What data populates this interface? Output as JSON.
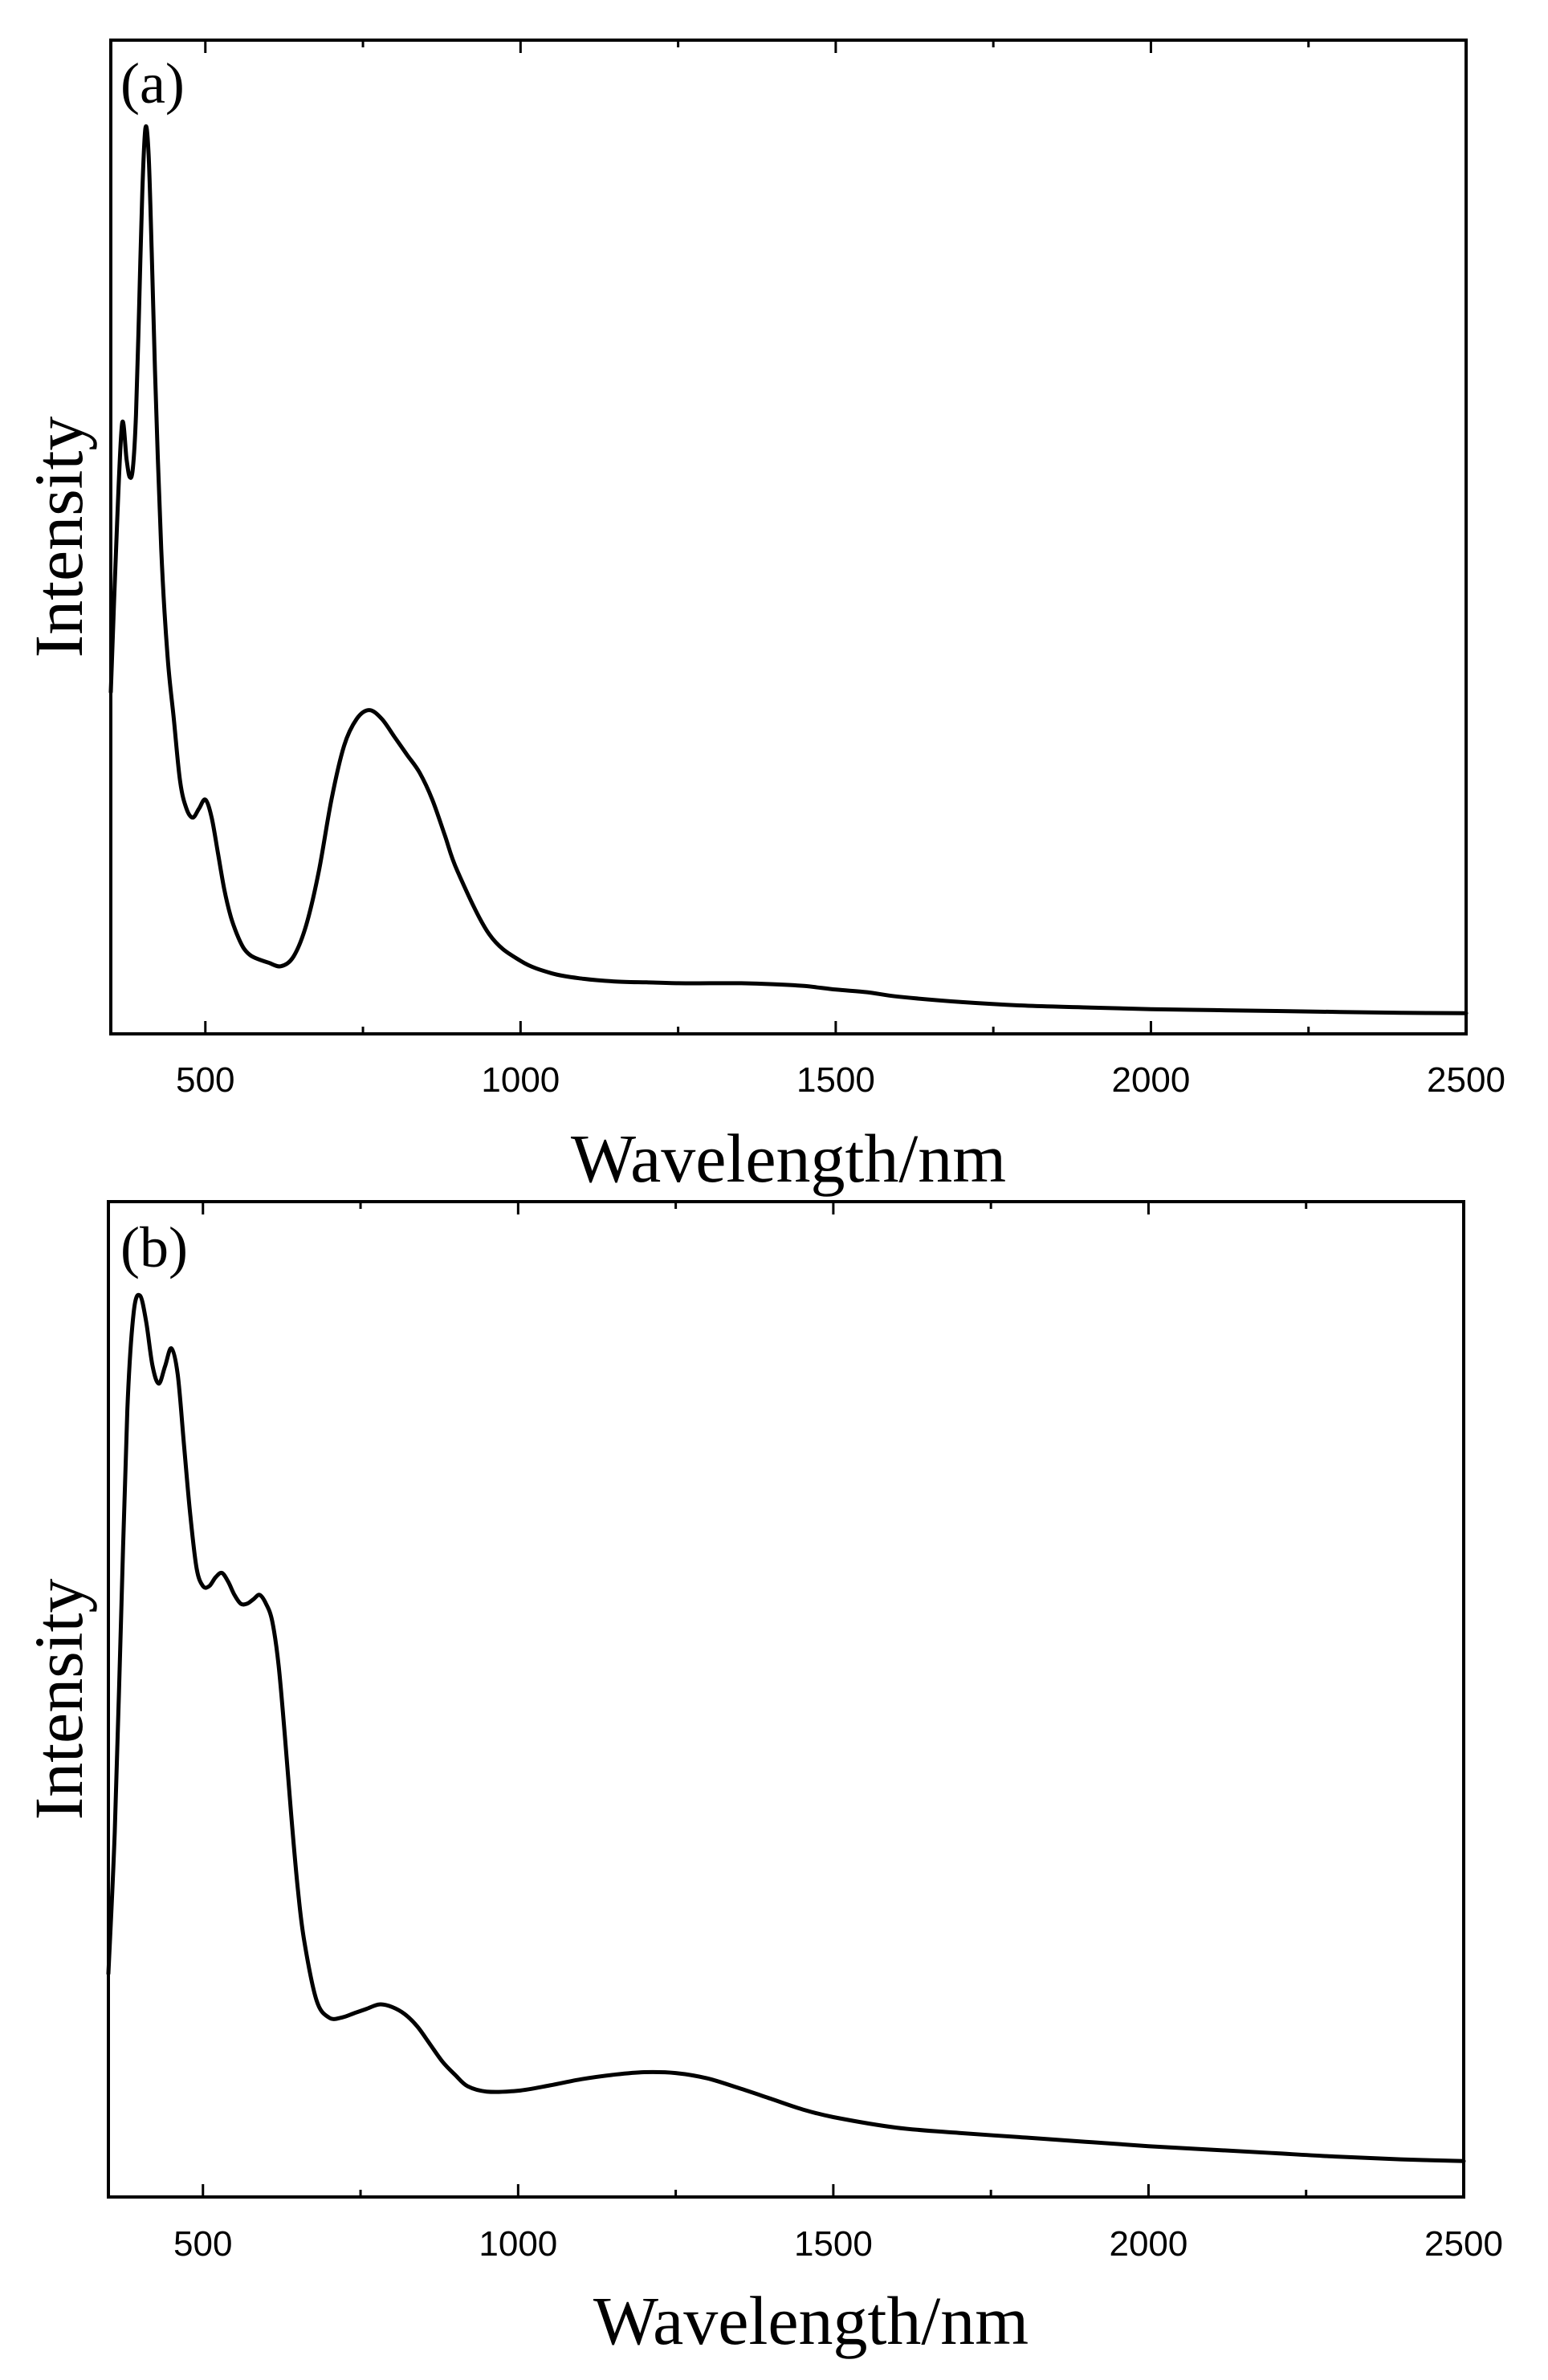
{
  "chart_data": [
    {
      "type": "line",
      "panel_label": "(a)",
      "xlabel": "Wavelength/nm",
      "ylabel": "Intensity",
      "xlim": [
        350,
        2500
      ],
      "ylim": [
        0,
        1.0
      ],
      "y_ticks_shown": false,
      "x_ticks": [
        500,
        1000,
        1500,
        2000,
        2500
      ],
      "x_tick_labels": [
        "500",
        "1000",
        "1500",
        "2000",
        "2500"
      ],
      "series": [
        {
          "name": "(a)",
          "x": [
            350,
            360,
            368,
            375,
            380,
            385,
            390,
            395,
            400,
            405,
            410,
            415,
            420,
            430,
            440,
            450,
            460,
            470,
            480,
            490,
            500,
            510,
            520,
            530,
            540,
            550,
            560,
            570,
            580,
            600,
            620,
            640,
            660,
            680,
            700,
            720,
            740,
            760,
            780,
            800,
            820,
            840,
            860,
            880,
            900,
            950,
            1000,
            1050,
            1100,
            1150,
            1200,
            1250,
            1300,
            1350,
            1400,
            1450,
            1500,
            1550,
            1600,
            1700,
            1800,
            1900,
            2000,
            2100,
            2200,
            2300,
            2400,
            2500
          ],
          "y": [
            0.36,
            0.55,
            0.66,
            0.62,
            0.6,
            0.61,
            0.67,
            0.79,
            0.92,
            0.99,
            0.96,
            0.85,
            0.72,
            0.52,
            0.4,
            0.33,
            0.26,
            0.23,
            0.22,
            0.23,
            0.24,
            0.22,
            0.18,
            0.14,
            0.11,
            0.09,
            0.075,
            0.067,
            0.063,
            0.058,
            0.054,
            0.065,
            0.1,
            0.16,
            0.24,
            0.3,
            0.33,
            0.34,
            0.33,
            0.31,
            0.29,
            0.27,
            0.24,
            0.2,
            0.16,
            0.09,
            0.06,
            0.046,
            0.04,
            0.037,
            0.036,
            0.035,
            0.035,
            0.035,
            0.034,
            0.032,
            0.028,
            0.025,
            0.02,
            0.014,
            0.01,
            0.008,
            0.006,
            0.005,
            0.004,
            0.003,
            0.002,
            0.0015
          ]
        }
      ]
    },
    {
      "type": "line",
      "panel_label": "(b)",
      "xlabel": "Wavelength/nm",
      "ylabel": "Intensity",
      "xlim": [
        350,
        2500
      ],
      "ylim": [
        0,
        1.0
      ],
      "y_ticks_shown": false,
      "x_ticks": [
        500,
        1000,
        1500,
        2000,
        2500
      ],
      "x_tick_labels": [
        "500",
        "1000",
        "1500",
        "2000",
        "2500"
      ],
      "series": [
        {
          "name": "(b)",
          "x": [
            350,
            360,
            370,
            380,
            390,
            400,
            410,
            420,
            430,
            440,
            450,
            460,
            470,
            480,
            490,
            500,
            510,
            520,
            530,
            540,
            550,
            560,
            570,
            580,
            590,
            600,
            610,
            620,
            630,
            640,
            650,
            660,
            680,
            700,
            720,
            740,
            760,
            780,
            800,
            820,
            840,
            860,
            880,
            900,
            920,
            950,
            1000,
            1050,
            1100,
            1150,
            1200,
            1250,
            1300,
            1350,
            1400,
            1450,
            1500,
            1600,
            1700,
            1800,
            1900,
            2000,
            2100,
            2200,
            2300,
            2400,
            2500
          ],
          "y": [
            0.22,
            0.38,
            0.62,
            0.86,
            0.97,
            0.99,
            0.96,
            0.91,
            0.89,
            0.91,
            0.93,
            0.9,
            0.82,
            0.74,
            0.68,
            0.66,
            0.66,
            0.67,
            0.675,
            0.665,
            0.65,
            0.64,
            0.64,
            0.645,
            0.65,
            0.64,
            0.62,
            0.57,
            0.49,
            0.4,
            0.32,
            0.26,
            0.19,
            0.17,
            0.17,
            0.175,
            0.18,
            0.185,
            0.182,
            0.174,
            0.16,
            0.14,
            0.12,
            0.105,
            0.092,
            0.086,
            0.087,
            0.093,
            0.1,
            0.105,
            0.108,
            0.107,
            0.101,
            0.09,
            0.078,
            0.066,
            0.057,
            0.045,
            0.039,
            0.034,
            0.029,
            0.024,
            0.02,
            0.016,
            0.012,
            0.009,
            0.007
          ]
        }
      ]
    }
  ]
}
